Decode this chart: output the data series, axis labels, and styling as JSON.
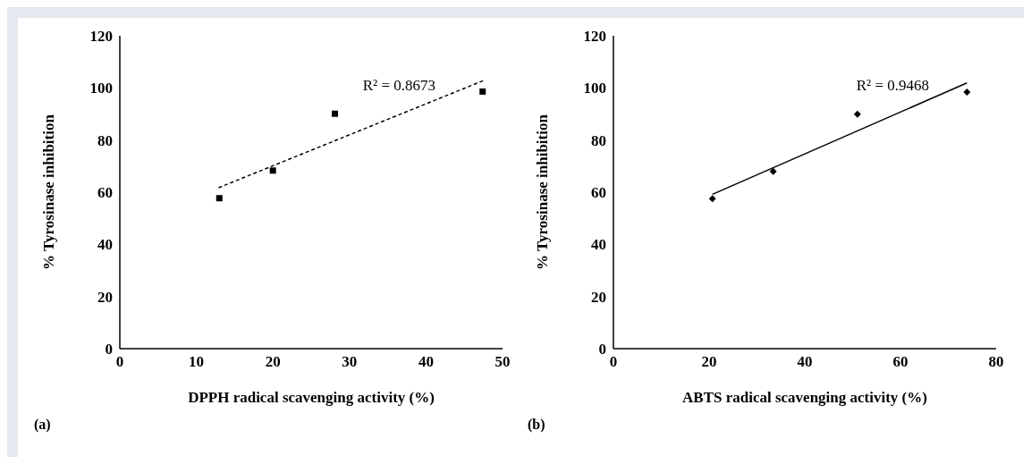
{
  "chart_data": [
    {
      "type": "scatter",
      "xlabel": "DPPH radical scavenging activity (%)",
      "ylabel": "% Tyrosinase inhibition",
      "xlim": [
        0,
        50
      ],
      "xticks": [
        0,
        10,
        20,
        30,
        40,
        50
      ],
      "ylim": [
        0,
        120
      ],
      "yticks": [
        0,
        20,
        40,
        60,
        80,
        100,
        120
      ],
      "grid": false,
      "legend": false,
      "series": [
        {
          "type": "scatter",
          "color": "#000000",
          "marker": "square",
          "x": [
            13.0,
            20.0,
            28.1,
            47.4
          ],
          "values": [
            57.7,
            68.3,
            90.1,
            98.6
          ]
        },
        {
          "type": "line",
          "color": "#000000",
          "marker": "none",
          "line_style": "dashed",
          "x": [
            12.9,
            47.5
          ],
          "values": [
            61.7,
            102.8
          ]
        }
      ],
      "annotations": [
        "R² = 0.8673",
        "(a)"
      ]
    },
    {
      "type": "scatter",
      "xlabel": "ABTS radical scavenging activity (%)",
      "ylabel": "% Tyrosinase inhibition",
      "xlim": [
        0,
        80
      ],
      "xticks": [
        0,
        20,
        40,
        60,
        80
      ],
      "ylim": [
        0,
        120
      ],
      "yticks": [
        0,
        20,
        40,
        60,
        80,
        100,
        120
      ],
      "grid": false,
      "legend": false,
      "series": [
        {
          "type": "scatter",
          "color": "#000000",
          "marker": "diamond",
          "x": [
            20.7,
            33.4,
            51.0,
            73.9
          ],
          "values": [
            57.5,
            68.0,
            89.9,
            98.4
          ]
        },
        {
          "type": "line",
          "color": "#000000",
          "marker": "none",
          "line_style": "solid",
          "x": [
            20.7,
            73.9
          ],
          "values": [
            59.2,
            101.9
          ]
        }
      ],
      "annotations": [
        "R² = 0.9468",
        "(b)"
      ]
    }
  ]
}
